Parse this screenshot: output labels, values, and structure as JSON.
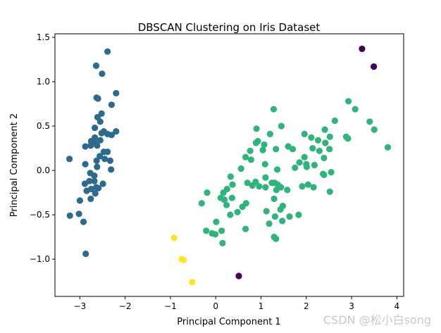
{
  "chart_data": {
    "type": "scatter",
    "title": "DBSCAN Clustering on Iris Dataset",
    "xlabel": "Principal Component 1",
    "ylabel": "Principal Component 2",
    "xlim": [
      -3.55,
      4.15
    ],
    "ylim": [
      -1.42,
      1.54
    ],
    "xticks": [
      -3,
      -2,
      -1,
      0,
      1,
      2,
      3,
      4
    ],
    "xtick_labels": [
      "−3",
      "−2",
      "−1",
      "0",
      "1",
      "2",
      "3",
      "4"
    ],
    "yticks": [
      -1.0,
      -0.5,
      0.0,
      0.5,
      1.0,
      1.5
    ],
    "ytick_labels": [
      "−1.0",
      "−0.5",
      "0.0",
      "0.5",
      "1.0",
      "1.5"
    ],
    "grid": false,
    "legend": false,
    "series": [
      {
        "cluster": -1,
        "color": "#440154",
        "points": [
          [
            3.23,
            1.37
          ],
          [
            3.49,
            1.17
          ],
          [
            0.51,
            -1.19
          ]
        ]
      },
      {
        "cluster": 0,
        "color": "#2c6b8e",
        "points": [
          [
            -2.39,
            1.34
          ],
          [
            -2.64,
            1.18
          ],
          [
            -2.51,
            1.09
          ],
          [
            -2.63,
            0.82
          ],
          [
            -2.6,
            0.81
          ],
          [
            -2.2,
            0.87
          ],
          [
            -2.3,
            0.74
          ],
          [
            -2.52,
            0.64
          ],
          [
            -2.61,
            0.6
          ],
          [
            -2.55,
            0.55
          ],
          [
            -2.67,
            0.48
          ],
          [
            -2.47,
            0.44
          ],
          [
            -2.52,
            0.42
          ],
          [
            -2.39,
            0.41
          ],
          [
            -2.2,
            0.44
          ],
          [
            -2.3,
            0.4
          ],
          [
            -2.67,
            0.37
          ],
          [
            -2.55,
            0.34
          ],
          [
            -2.75,
            0.33
          ],
          [
            -2.68,
            0.32
          ],
          [
            -2.88,
            0.27
          ],
          [
            -2.76,
            0.28
          ],
          [
            -2.62,
            0.28
          ],
          [
            -2.47,
            0.21
          ],
          [
            -2.56,
            0.16
          ],
          [
            -2.39,
            0.21
          ],
          [
            -2.63,
            0.11
          ],
          [
            -2.45,
            0.13
          ],
          [
            -2.33,
            0.11
          ],
          [
            -2.88,
            0.07
          ],
          [
            -3.23,
            0.13
          ],
          [
            -2.77,
            -0.03
          ],
          [
            -2.62,
            0.04
          ],
          [
            -2.31,
            0.01
          ],
          [
            -2.68,
            -0.06
          ],
          [
            -2.79,
            -0.12
          ],
          [
            -2.89,
            -0.15
          ],
          [
            -2.68,
            -0.12
          ],
          [
            -2.49,
            -0.15
          ],
          [
            -2.85,
            -0.23
          ],
          [
            -2.75,
            -0.21
          ],
          [
            -2.64,
            -0.19
          ],
          [
            -2.59,
            -0.2
          ],
          [
            -2.76,
            -0.32
          ],
          [
            -2.66,
            -0.26
          ],
          [
            -3.0,
            -0.34
          ],
          [
            -2.92,
            -0.58
          ],
          [
            -3.02,
            -0.49
          ],
          [
            -3.22,
            -0.51
          ],
          [
            -2.87,
            -0.94
          ]
        ]
      },
      {
        "cluster": 1,
        "color": "#2fb47c",
        "points": [
          [
            1.28,
            0.69
          ],
          [
            2.93,
            0.78
          ],
          [
            3.08,
            0.69
          ],
          [
            3.4,
            0.55
          ],
          [
            3.5,
            0.46
          ],
          [
            3.8,
            0.26
          ],
          [
            2.63,
            0.56
          ],
          [
            1.45,
            0.5
          ],
          [
            0.9,
            0.47
          ],
          [
            1.2,
            0.41
          ],
          [
            1.96,
            0.41
          ],
          [
            2.11,
            0.37
          ],
          [
            2.41,
            0.46
          ],
          [
            2.88,
            0.38
          ],
          [
            2.92,
            0.36
          ],
          [
            2.26,
            0.34
          ],
          [
            2.42,
            0.31
          ],
          [
            2.52,
            0.38
          ],
          [
            0.93,
            0.33
          ],
          [
            0.89,
            0.31
          ],
          [
            1.07,
            0.29
          ],
          [
            1.6,
            0.27
          ],
          [
            1.7,
            0.24
          ],
          [
            1.33,
            0.24
          ],
          [
            1.04,
            0.23
          ],
          [
            0.76,
            0.22
          ],
          [
            0.66,
            0.15
          ],
          [
            2.14,
            0.25
          ],
          [
            2.29,
            0.22
          ],
          [
            2.39,
            0.14
          ],
          [
            2.51,
            0.24
          ],
          [
            1.96,
            0.15
          ],
          [
            1.85,
            0.09
          ],
          [
            2.0,
            0.07
          ],
          [
            2.01,
            0.04
          ],
          [
            2.18,
            0.06
          ],
          [
            1.75,
            0.03
          ],
          [
            1.36,
            0.01
          ],
          [
            1.09,
            0.07
          ],
          [
            0.78,
            0.12
          ],
          [
            0.56,
            0.02
          ],
          [
            0.33,
            -0.07
          ],
          [
            1.1,
            -0.08
          ],
          [
            2.55,
            -0.02
          ],
          [
            2.37,
            -0.04
          ],
          [
            0.88,
            -0.13
          ],
          [
            1.24,
            -0.14
          ],
          [
            1.3,
            -0.14
          ],
          [
            1.37,
            -0.16
          ],
          [
            0.7,
            -0.14
          ],
          [
            2.39,
            -0.05
          ],
          [
            0.81,
            -0.17
          ],
          [
            1.44,
            -0.19
          ],
          [
            1.1,
            -0.19
          ],
          [
            1.58,
            -0.22
          ],
          [
            1.91,
            -0.18
          ],
          [
            2.04,
            -0.16
          ],
          [
            1.34,
            -0.22
          ],
          [
            0.96,
            -0.18
          ],
          [
            0.37,
            -0.16
          ],
          [
            0.25,
            -0.21
          ],
          [
            0.17,
            -0.25
          ],
          [
            -0.19,
            -0.25
          ],
          [
            2.16,
            -0.19
          ],
          [
            2.52,
            -0.24
          ],
          [
            0.36,
            -0.31
          ],
          [
            0.11,
            -0.31
          ],
          [
            0.19,
            -0.33
          ],
          [
            0.24,
            -0.39
          ],
          [
            1.29,
            -0.32
          ],
          [
            1.48,
            -0.4
          ],
          [
            0.67,
            -0.37
          ],
          [
            0.59,
            -0.41
          ],
          [
            -0.31,
            -0.37
          ],
          [
            0.48,
            -0.47
          ],
          [
            0.32,
            -0.5
          ],
          [
            1.43,
            -0.44
          ],
          [
            1.12,
            -0.46
          ],
          [
            1.31,
            -0.52
          ],
          [
            1.63,
            -0.52
          ],
          [
            1.83,
            -0.5
          ],
          [
            1.47,
            -0.57
          ],
          [
            1.18,
            -0.6
          ],
          [
            0.66,
            -0.66
          ],
          [
            0.01,
            -0.58
          ],
          [
            0.13,
            -0.68
          ],
          [
            -0.21,
            -0.68
          ],
          [
            -0.08,
            -0.71
          ],
          [
            -0.01,
            -0.72
          ],
          [
            0.15,
            -0.82
          ],
          [
            1.29,
            -0.75
          ],
          [
            1.33,
            -0.77
          ]
        ]
      },
      {
        "cluster": 2,
        "color": "#fde725",
        "points": [
          [
            -0.92,
            -0.76
          ],
          [
            -0.75,
            -1.0
          ],
          [
            -0.71,
            -1.01
          ],
          [
            -0.52,
            -1.26
          ]
        ]
      }
    ]
  },
  "watermark": "CSDN @松小白song"
}
